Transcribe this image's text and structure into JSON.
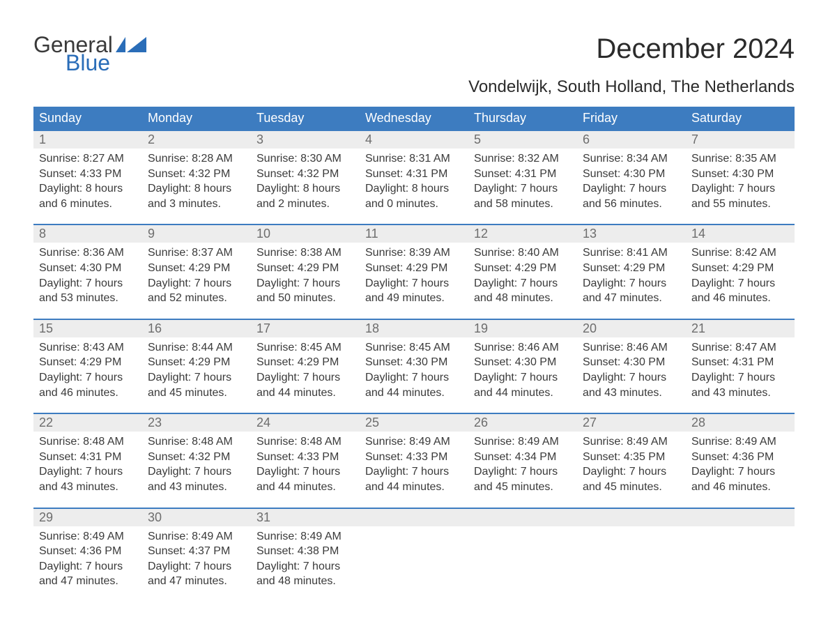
{
  "brand": {
    "part1": "General",
    "part2": "Blue",
    "flag_color": "#2a6db8",
    "text_color": "#3a3a3a"
  },
  "title": "December 2024",
  "location": "Vondelwijk, South Holland, The Netherlands",
  "header_bg": "#3d7cc0",
  "daynum_bg": "#ededed",
  "week_border": "#3d7cc0",
  "weekdays": [
    "Sunday",
    "Monday",
    "Tuesday",
    "Wednesday",
    "Thursday",
    "Friday",
    "Saturday"
  ],
  "weeks": [
    [
      {
        "n": "1",
        "sunrise": "Sunrise: 8:27 AM",
        "sunset": "Sunset: 4:33 PM",
        "day1": "Daylight: 8 hours",
        "day2": "and 6 minutes."
      },
      {
        "n": "2",
        "sunrise": "Sunrise: 8:28 AM",
        "sunset": "Sunset: 4:32 PM",
        "day1": "Daylight: 8 hours",
        "day2": "and 3 minutes."
      },
      {
        "n": "3",
        "sunrise": "Sunrise: 8:30 AM",
        "sunset": "Sunset: 4:32 PM",
        "day1": "Daylight: 8 hours",
        "day2": "and 2 minutes."
      },
      {
        "n": "4",
        "sunrise": "Sunrise: 8:31 AM",
        "sunset": "Sunset: 4:31 PM",
        "day1": "Daylight: 8 hours",
        "day2": "and 0 minutes."
      },
      {
        "n": "5",
        "sunrise": "Sunrise: 8:32 AM",
        "sunset": "Sunset: 4:31 PM",
        "day1": "Daylight: 7 hours",
        "day2": "and 58 minutes."
      },
      {
        "n": "6",
        "sunrise": "Sunrise: 8:34 AM",
        "sunset": "Sunset: 4:30 PM",
        "day1": "Daylight: 7 hours",
        "day2": "and 56 minutes."
      },
      {
        "n": "7",
        "sunrise": "Sunrise: 8:35 AM",
        "sunset": "Sunset: 4:30 PM",
        "day1": "Daylight: 7 hours",
        "day2": "and 55 minutes."
      }
    ],
    [
      {
        "n": "8",
        "sunrise": "Sunrise: 8:36 AM",
        "sunset": "Sunset: 4:30 PM",
        "day1": "Daylight: 7 hours",
        "day2": "and 53 minutes."
      },
      {
        "n": "9",
        "sunrise": "Sunrise: 8:37 AM",
        "sunset": "Sunset: 4:29 PM",
        "day1": "Daylight: 7 hours",
        "day2": "and 52 minutes."
      },
      {
        "n": "10",
        "sunrise": "Sunrise: 8:38 AM",
        "sunset": "Sunset: 4:29 PM",
        "day1": "Daylight: 7 hours",
        "day2": "and 50 minutes."
      },
      {
        "n": "11",
        "sunrise": "Sunrise: 8:39 AM",
        "sunset": "Sunset: 4:29 PM",
        "day1": "Daylight: 7 hours",
        "day2": "and 49 minutes."
      },
      {
        "n": "12",
        "sunrise": "Sunrise: 8:40 AM",
        "sunset": "Sunset: 4:29 PM",
        "day1": "Daylight: 7 hours",
        "day2": "and 48 minutes."
      },
      {
        "n": "13",
        "sunrise": "Sunrise: 8:41 AM",
        "sunset": "Sunset: 4:29 PM",
        "day1": "Daylight: 7 hours",
        "day2": "and 47 minutes."
      },
      {
        "n": "14",
        "sunrise": "Sunrise: 8:42 AM",
        "sunset": "Sunset: 4:29 PM",
        "day1": "Daylight: 7 hours",
        "day2": "and 46 minutes."
      }
    ],
    [
      {
        "n": "15",
        "sunrise": "Sunrise: 8:43 AM",
        "sunset": "Sunset: 4:29 PM",
        "day1": "Daylight: 7 hours",
        "day2": "and 46 minutes."
      },
      {
        "n": "16",
        "sunrise": "Sunrise: 8:44 AM",
        "sunset": "Sunset: 4:29 PM",
        "day1": "Daylight: 7 hours",
        "day2": "and 45 minutes."
      },
      {
        "n": "17",
        "sunrise": "Sunrise: 8:45 AM",
        "sunset": "Sunset: 4:29 PM",
        "day1": "Daylight: 7 hours",
        "day2": "and 44 minutes."
      },
      {
        "n": "18",
        "sunrise": "Sunrise: 8:45 AM",
        "sunset": "Sunset: 4:30 PM",
        "day1": "Daylight: 7 hours",
        "day2": "and 44 minutes."
      },
      {
        "n": "19",
        "sunrise": "Sunrise: 8:46 AM",
        "sunset": "Sunset: 4:30 PM",
        "day1": "Daylight: 7 hours",
        "day2": "and 44 minutes."
      },
      {
        "n": "20",
        "sunrise": "Sunrise: 8:46 AM",
        "sunset": "Sunset: 4:30 PM",
        "day1": "Daylight: 7 hours",
        "day2": "and 43 minutes."
      },
      {
        "n": "21",
        "sunrise": "Sunrise: 8:47 AM",
        "sunset": "Sunset: 4:31 PM",
        "day1": "Daylight: 7 hours",
        "day2": "and 43 minutes."
      }
    ],
    [
      {
        "n": "22",
        "sunrise": "Sunrise: 8:48 AM",
        "sunset": "Sunset: 4:31 PM",
        "day1": "Daylight: 7 hours",
        "day2": "and 43 minutes."
      },
      {
        "n": "23",
        "sunrise": "Sunrise: 8:48 AM",
        "sunset": "Sunset: 4:32 PM",
        "day1": "Daylight: 7 hours",
        "day2": "and 43 minutes."
      },
      {
        "n": "24",
        "sunrise": "Sunrise: 8:48 AM",
        "sunset": "Sunset: 4:33 PM",
        "day1": "Daylight: 7 hours",
        "day2": "and 44 minutes."
      },
      {
        "n": "25",
        "sunrise": "Sunrise: 8:49 AM",
        "sunset": "Sunset: 4:33 PM",
        "day1": "Daylight: 7 hours",
        "day2": "and 44 minutes."
      },
      {
        "n": "26",
        "sunrise": "Sunrise: 8:49 AM",
        "sunset": "Sunset: 4:34 PM",
        "day1": "Daylight: 7 hours",
        "day2": "and 45 minutes."
      },
      {
        "n": "27",
        "sunrise": "Sunrise: 8:49 AM",
        "sunset": "Sunset: 4:35 PM",
        "day1": "Daylight: 7 hours",
        "day2": "and 45 minutes."
      },
      {
        "n": "28",
        "sunrise": "Sunrise: 8:49 AM",
        "sunset": "Sunset: 4:36 PM",
        "day1": "Daylight: 7 hours",
        "day2": "and 46 minutes."
      }
    ],
    [
      {
        "n": "29",
        "sunrise": "Sunrise: 8:49 AM",
        "sunset": "Sunset: 4:36 PM",
        "day1": "Daylight: 7 hours",
        "day2": "and 47 minutes."
      },
      {
        "n": "30",
        "sunrise": "Sunrise: 8:49 AM",
        "sunset": "Sunset: 4:37 PM",
        "day1": "Daylight: 7 hours",
        "day2": "and 47 minutes."
      },
      {
        "n": "31",
        "sunrise": "Sunrise: 8:49 AM",
        "sunset": "Sunset: 4:38 PM",
        "day1": "Daylight: 7 hours",
        "day2": "and 48 minutes."
      },
      {
        "empty": true
      },
      {
        "empty": true
      },
      {
        "empty": true
      },
      {
        "empty": true
      }
    ]
  ]
}
